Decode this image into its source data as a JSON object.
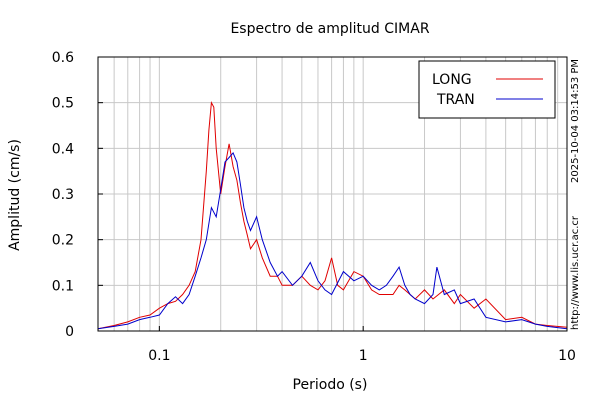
{
  "chart_data": {
    "type": "line",
    "title": "Espectro de amplitud CIMAR",
    "xlabel": "Periodo (s)",
    "ylabel": "Amplitud (cm/s)",
    "x_scale": "log",
    "xlim": [
      0.05,
      10
    ],
    "ylim": [
      0,
      0.6
    ],
    "x_ticks": [
      0.1,
      1,
      10
    ],
    "x_tick_labels": [
      "0.1",
      "1",
      "10"
    ],
    "y_ticks": [
      0,
      0.1,
      0.2,
      0.3,
      0.4,
      0.5,
      0.6
    ],
    "y_tick_labels": [
      "0",
      "0.1",
      "0.2",
      "0.3",
      "0.4",
      "0.5",
      "0.6"
    ],
    "grid": true,
    "legend_position": "top-right",
    "side_texts": [
      "http://www.lis.ucr.ac.cr",
      "2025-10-04 03:14:53 PM"
    ],
    "series": [
      {
        "name": "LONG",
        "color": "#e00000",
        "x": [
          0.05,
          0.06,
          0.07,
          0.08,
          0.09,
          0.1,
          0.11,
          0.12,
          0.13,
          0.14,
          0.15,
          0.16,
          0.17,
          0.175,
          0.18,
          0.185,
          0.19,
          0.2,
          0.21,
          0.22,
          0.23,
          0.24,
          0.25,
          0.26,
          0.27,
          0.28,
          0.3,
          0.32,
          0.35,
          0.38,
          0.4,
          0.45,
          0.5,
          0.55,
          0.6,
          0.65,
          0.7,
          0.75,
          0.8,
          0.9,
          1.0,
          1.1,
          1.2,
          1.4,
          1.5,
          1.6,
          1.7,
          1.8,
          2.0,
          2.2,
          2.5,
          2.8,
          3.0,
          3.5,
          4.0,
          5.0,
          6.0,
          7.0,
          8.0,
          10.0
        ],
        "y": [
          0.005,
          0.012,
          0.02,
          0.03,
          0.035,
          0.05,
          0.06,
          0.065,
          0.08,
          0.1,
          0.13,
          0.2,
          0.35,
          0.44,
          0.5,
          0.49,
          0.4,
          0.3,
          0.36,
          0.41,
          0.36,
          0.33,
          0.28,
          0.24,
          0.21,
          0.18,
          0.2,
          0.16,
          0.12,
          0.12,
          0.1,
          0.1,
          0.12,
          0.1,
          0.09,
          0.11,
          0.16,
          0.1,
          0.09,
          0.13,
          0.12,
          0.09,
          0.08,
          0.08,
          0.1,
          0.09,
          0.08,
          0.07,
          0.09,
          0.07,
          0.09,
          0.06,
          0.08,
          0.05,
          0.07,
          0.025,
          0.03,
          0.015,
          0.012,
          0.008
        ]
      },
      {
        "name": "TRAN",
        "color": "#0000cc",
        "x": [
          0.05,
          0.06,
          0.07,
          0.08,
          0.09,
          0.1,
          0.11,
          0.12,
          0.13,
          0.14,
          0.15,
          0.16,
          0.17,
          0.18,
          0.19,
          0.2,
          0.21,
          0.22,
          0.23,
          0.24,
          0.25,
          0.26,
          0.27,
          0.28,
          0.3,
          0.32,
          0.35,
          0.38,
          0.4,
          0.45,
          0.5,
          0.55,
          0.6,
          0.65,
          0.7,
          0.8,
          0.9,
          1.0,
          1.1,
          1.2,
          1.3,
          1.4,
          1.5,
          1.6,
          1.7,
          1.8,
          2.0,
          2.2,
          2.3,
          2.5,
          2.8,
          3.0,
          3.5,
          4.0,
          5.0,
          6.0,
          7.0,
          8.0,
          10.0
        ],
        "y": [
          0.005,
          0.01,
          0.015,
          0.025,
          0.03,
          0.035,
          0.06,
          0.075,
          0.06,
          0.08,
          0.12,
          0.16,
          0.2,
          0.27,
          0.25,
          0.31,
          0.37,
          0.38,
          0.39,
          0.37,
          0.32,
          0.27,
          0.24,
          0.22,
          0.25,
          0.2,
          0.15,
          0.12,
          0.13,
          0.1,
          0.12,
          0.15,
          0.11,
          0.09,
          0.08,
          0.13,
          0.11,
          0.12,
          0.1,
          0.09,
          0.1,
          0.12,
          0.14,
          0.1,
          0.08,
          0.07,
          0.06,
          0.08,
          0.14,
          0.08,
          0.09,
          0.06,
          0.07,
          0.03,
          0.02,
          0.025,
          0.015,
          0.01,
          0.005
        ]
      }
    ]
  }
}
